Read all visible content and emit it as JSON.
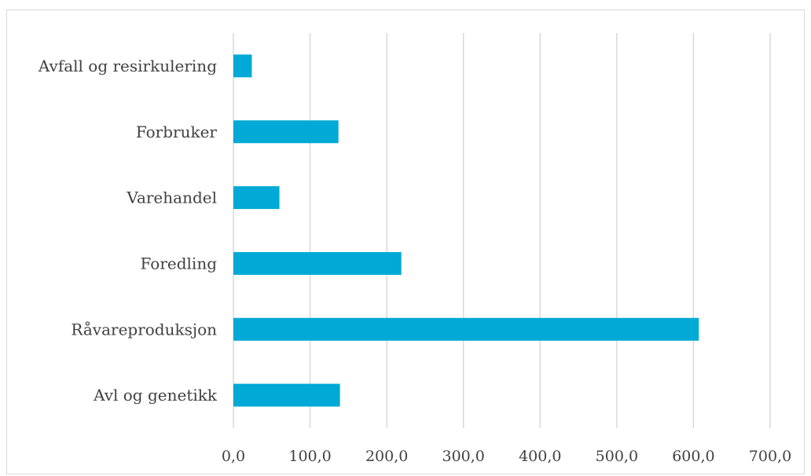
{
  "chart_data": {
    "type": "bar",
    "orientation": "horizontal",
    "categories": [
      "Avfall og resirkulering",
      "Forbruker",
      "Varehandel",
      "Foredling",
      "Råvareproduksjon",
      "Avl og genetikk"
    ],
    "values": [
      24,
      137,
      60,
      219,
      607,
      139
    ],
    "xlim": [
      0,
      700
    ],
    "x_ticks": [
      "0,0",
      "100,0",
      "200,0",
      "300,0",
      "400,0",
      "500,0",
      "600,0",
      "700,0"
    ],
    "title": "",
    "xlabel": "",
    "ylabel": "",
    "grid": "vertical",
    "legend": "none",
    "bar_color": "#00A9D6",
    "grid_color": "#D9D9D9"
  }
}
